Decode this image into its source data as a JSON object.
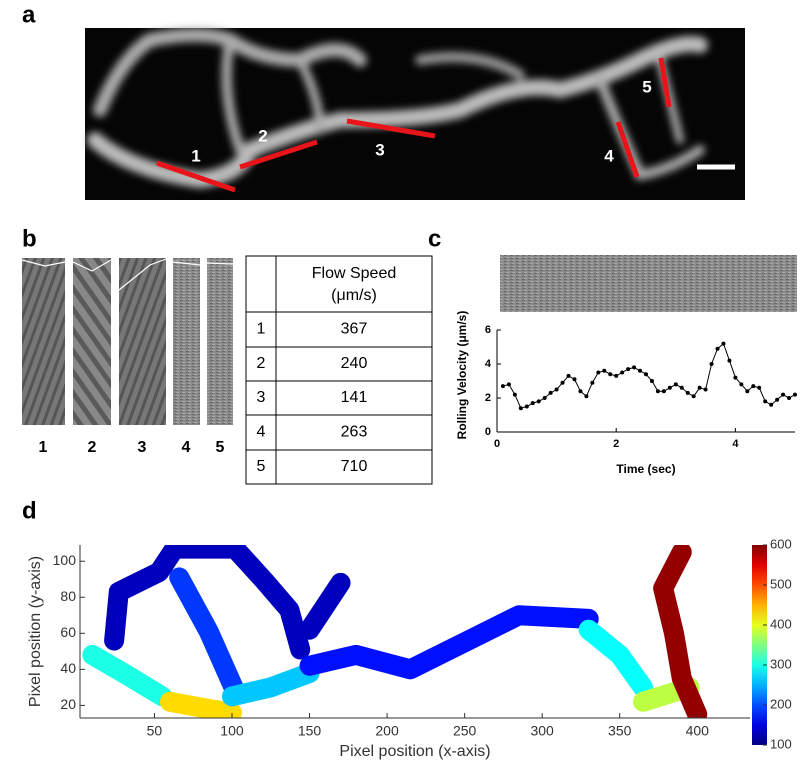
{
  "panel_labels": [
    "a",
    "b",
    "c",
    "d"
  ],
  "panel_a": {
    "segment_labels": [
      "1",
      "2",
      "3",
      "4",
      "5"
    ]
  },
  "panel_b": {
    "kymograph_labels": [
      "1",
      "2",
      "3",
      "4",
      "5"
    ],
    "table": {
      "header": [
        "Flow Speed",
        "(μm/s)"
      ],
      "rows": [
        [
          "1",
          "367"
        ],
        [
          "2",
          "240"
        ],
        [
          "3",
          "141"
        ],
        [
          "4",
          "263"
        ],
        [
          "5",
          "710"
        ]
      ]
    }
  },
  "chart_data": [
    {
      "type": "line",
      "ylabel": "Rolling Velocity (μm/s)",
      "xlabel": "Time (sec)",
      "color": "#000000",
      "markers": true,
      "x": [
        0.1,
        0.2,
        0.3,
        0.4,
        0.5,
        0.6,
        0.7,
        0.8,
        0.9,
        1.0,
        1.1,
        1.2,
        1.3,
        1.4,
        1.5,
        1.6,
        1.7,
        1.8,
        1.9,
        2.0,
        2.1,
        2.2,
        2.3,
        2.4,
        2.5,
        2.6,
        2.7,
        2.8,
        2.9,
        3.0,
        3.1,
        3.2,
        3.3,
        3.4,
        3.5,
        3.6,
        3.7,
        3.8,
        3.9,
        4.0,
        4.1,
        4.2,
        4.3,
        4.4,
        4.5,
        4.6,
        4.7,
        4.8,
        4.9,
        5.0
      ],
      "values": [
        2.7,
        2.8,
        2.2,
        1.4,
        1.5,
        1.7,
        1.8,
        2.0,
        2.3,
        2.5,
        2.9,
        3.3,
        3.1,
        2.4,
        2.1,
        2.9,
        3.5,
        3.6,
        3.4,
        3.3,
        3.5,
        3.7,
        3.8,
        3.6,
        3.4,
        3.0,
        2.4,
        2.4,
        2.6,
        2.8,
        2.6,
        2.3,
        2.1,
        2.6,
        2.5,
        4.0,
        4.9,
        5.2,
        4.2,
        3.2,
        2.8,
        2.4,
        2.7,
        2.6,
        1.8,
        1.6,
        1.9,
        2.2,
        2.0,
        2.2
      ],
      "xlim": [
        0,
        5
      ],
      "ylim": [
        0,
        6
      ],
      "xticks": [
        0,
        2,
        4
      ],
      "yticks": [
        0,
        2,
        4,
        6
      ]
    },
    {
      "type": "colormap",
      "xlabel": "Pixel position (x-axis)",
      "ylabel": "Pixel position (y-axis)",
      "xlim": [
        2,
        434
      ],
      "ylim": [
        13,
        109
      ],
      "xticks": [
        50,
        100,
        150,
        200,
        250,
        300,
        350,
        400
      ],
      "yticks": [
        20,
        40,
        60,
        80,
        100
      ],
      "colormap": "jet",
      "clim": [
        100,
        600
      ],
      "cticks": [
        100,
        200,
        300,
        400,
        500,
        600
      ],
      "segments": [
        {
          "x": [
            24,
            27,
            53,
            63,
            102,
            121,
            137,
            144
          ],
          "y": [
            56,
            83,
            94,
            107,
            107,
            89,
            73,
            51
          ],
          "value": 130
        },
        {
          "x": [
            66,
            85,
            102
          ],
          "y": [
            91,
            61,
            28
          ],
          "value": 190
        },
        {
          "x": [
            10,
            30,
            55
          ],
          "y": [
            48,
            38,
            25
          ],
          "value": 300
        },
        {
          "x": [
            60,
            85,
            100
          ],
          "y": [
            22,
            18,
            16
          ],
          "value": 430
        },
        {
          "x": [
            100,
            125,
            150
          ],
          "y": [
            25,
            30,
            38
          ],
          "value": 260
        },
        {
          "x": [
            150,
            180,
            215,
            250,
            285,
            330
          ],
          "y": [
            42,
            48,
            40,
            55,
            70,
            68
          ],
          "value": 170
        },
        {
          "x": [
            150,
            170
          ],
          "y": [
            62,
            88
          ],
          "value": 130
        },
        {
          "x": [
            330,
            350,
            365
          ],
          "y": [
            62,
            48,
            30
          ],
          "value": 290
        },
        {
          "x": [
            365,
            395
          ],
          "y": [
            22,
            30
          ],
          "value": 380
        },
        {
          "x": [
            390,
            378,
            385,
            390,
            400
          ],
          "y": [
            105,
            85,
            60,
            35,
            15
          ],
          "value": 590
        }
      ]
    }
  ]
}
